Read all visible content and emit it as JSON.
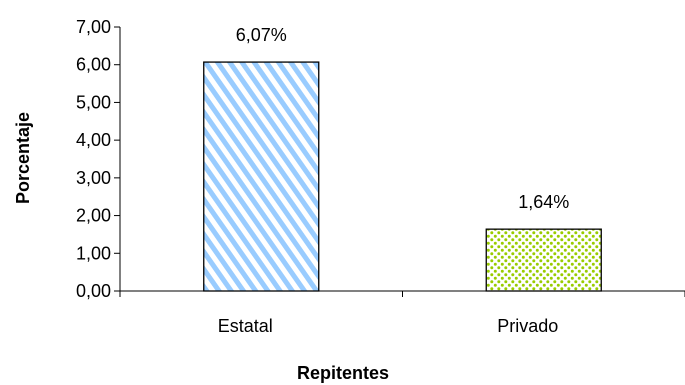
{
  "chart_data": {
    "type": "bar",
    "categories": [
      "Estatal",
      "Privado"
    ],
    "values": [
      6.07,
      1.64
    ],
    "data_labels": [
      "6,07%",
      "1,64%"
    ],
    "title": "",
    "xlabel": "Repitentes",
    "ylabel": "Porcentaje",
    "ylim": [
      0,
      7
    ],
    "yticks": [
      0,
      1,
      2,
      3,
      4,
      5,
      6,
      7
    ],
    "ytick_labels": [
      "0,00",
      "1,00",
      "2,00",
      "3,00",
      "4,00",
      "5,00",
      "6,00",
      "7,00"
    ],
    "grid": false,
    "legend": "none",
    "bar_styles": [
      {
        "pattern": "diagonal-stripes",
        "color": "#99ccff",
        "background": "#ffffff"
      },
      {
        "pattern": "dots",
        "color": "#99cc00",
        "background": "#ffffff"
      }
    ]
  }
}
